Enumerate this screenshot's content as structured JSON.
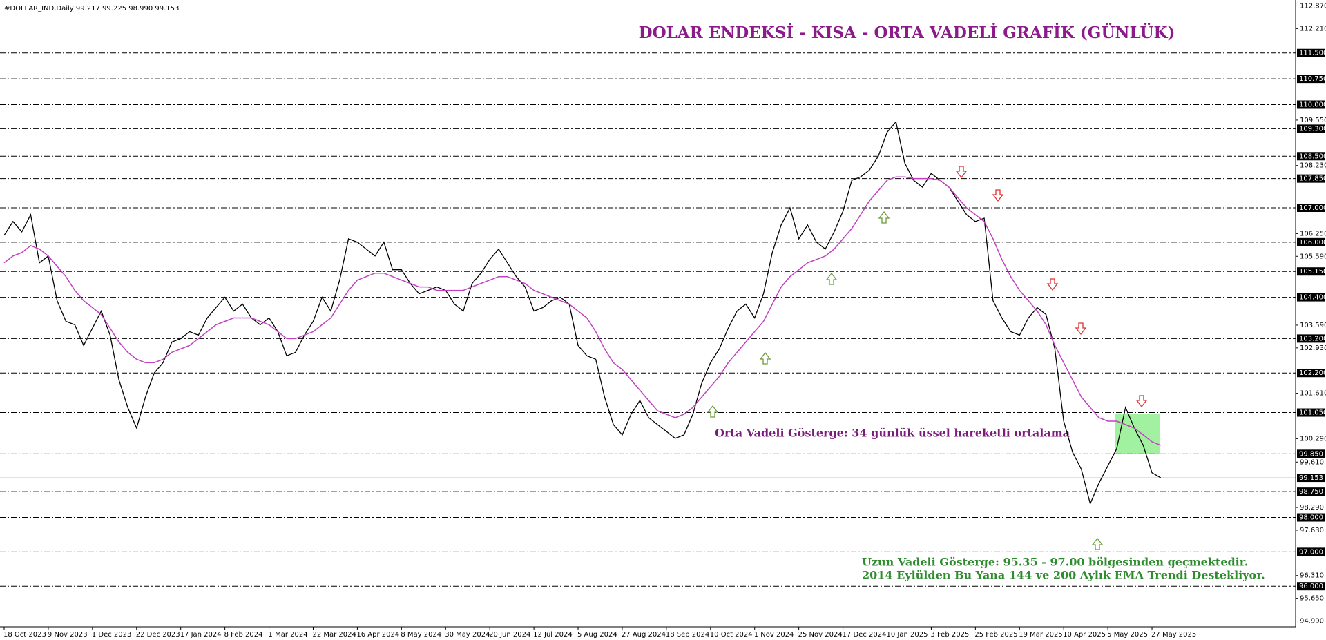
{
  "chart_data": {
    "type": "line",
    "header": "#DOLLAR_IND,Daily  99.217 99.225 98.990 99.153",
    "title": "DOLAR ENDEKSİ - KISA - ORTA VADELİ GRAFİK (GÜNLÜK)",
    "annotations": [
      "Orta Vadeli Gösterge: 34 günlük üssel hareketli ortalama",
      "Uzun Vadeli Gösterge: 95.35 - 97.00 bölgesinden geçmektedir.",
      "2014 Eylülden Bu Yana 144 ve 200 Aylık EMA Trendi Destekliyor."
    ],
    "categories": [
      "18 Oct 2023",
      null,
      null,
      null,
      null,
      "9 Nov 2023",
      null,
      null,
      null,
      null,
      "1 Dec 2023",
      null,
      null,
      null,
      null,
      "22 Dec 2023",
      null,
      null,
      null,
      null,
      "17 Jan 2024",
      null,
      null,
      null,
      null,
      "8 Feb 2024",
      null,
      null,
      null,
      null,
      "1 Mar 2024",
      null,
      null,
      null,
      null,
      "22 Mar 2024",
      null,
      null,
      null,
      null,
      "16 Apr 2024",
      null,
      null,
      null,
      null,
      "8 May 2024",
      null,
      null,
      null,
      null,
      "30 May 2024",
      null,
      null,
      null,
      null,
      "20 Jun 2024",
      null,
      null,
      null,
      null,
      "12 Jul 2024",
      null,
      null,
      null,
      null,
      "5 Aug 2024",
      null,
      null,
      null,
      null,
      "27 Aug 2024",
      null,
      null,
      null,
      null,
      "18 Sep 2024",
      null,
      null,
      null,
      null,
      "10 Oct 2024",
      null,
      null,
      null,
      null,
      "1 Nov 2024",
      null,
      null,
      null,
      null,
      "25 Nov 2024",
      null,
      null,
      null,
      null,
      "17 Dec 2024",
      null,
      null,
      null,
      null,
      "10 Jan 2025",
      null,
      null,
      null,
      null,
      "3 Feb 2025",
      null,
      null,
      null,
      null,
      "25 Feb 2025",
      null,
      null,
      null,
      null,
      "19 Mar 2025",
      null,
      null,
      null,
      null,
      "10 Apr 2025",
      null,
      null,
      null,
      null,
      "5 May 2025",
      null,
      null,
      null,
      null,
      "27 May 2025",
      null
    ],
    "series": [
      {
        "color": "#000000",
        "values": [
          106.2,
          106.6,
          106.3,
          106.8,
          105.4,
          105.6,
          104.3,
          103.7,
          103.6,
          103.0,
          103.5,
          104.0,
          103.3,
          102.0,
          101.2,
          100.6,
          101.5,
          102.2,
          102.5,
          103.1,
          103.2,
          103.4,
          103.3,
          103.8,
          104.1,
          104.4,
          104.0,
          104.2,
          103.8,
          103.6,
          103.8,
          103.4,
          102.7,
          102.8,
          103.3,
          103.7,
          104.4,
          104.0,
          104.9,
          106.1,
          106.0,
          105.8,
          105.6,
          106.0,
          105.2,
          105.2,
          104.8,
          104.5,
          104.6,
          104.7,
          104.6,
          104.2,
          104.0,
          104.8,
          105.1,
          105.5,
          105.8,
          105.4,
          105.0,
          104.7,
          104.0,
          104.1,
          104.3,
          104.4,
          104.2,
          103.0,
          102.7,
          102.6,
          101.5,
          100.7,
          100.4,
          101.0,
          101.4,
          100.9,
          100.7,
          100.5,
          100.3,
          100.4,
          101.0,
          101.9,
          102.5,
          102.9,
          103.5,
          104.0,
          104.2,
          103.8,
          104.5,
          105.7,
          106.5,
          107.0,
          106.1,
          106.5,
          106.0,
          105.8,
          106.3,
          106.9,
          107.8,
          107.9,
          108.1,
          108.5,
          109.2,
          109.5,
          108.3,
          107.8,
          107.6,
          108.0,
          107.8,
          107.6,
          107.2,
          106.8,
          106.6,
          106.7,
          104.3,
          103.8,
          103.4,
          103.3,
          103.8,
          104.1,
          103.9,
          102.9,
          100.8,
          99.9,
          99.4,
          98.4,
          99.0,
          99.5,
          100.0,
          101.2,
          100.6,
          100.1,
          99.3,
          99.153
        ]
      },
      {
        "color": "#c040c0",
        "values": [
          105.4,
          105.6,
          105.7,
          105.9,
          105.8,
          105.6,
          105.3,
          105.0,
          104.6,
          104.3,
          104.1,
          103.9,
          103.5,
          103.1,
          102.8,
          102.6,
          102.5,
          102.5,
          102.6,
          102.8,
          102.9,
          103.0,
          103.2,
          103.4,
          103.6,
          103.7,
          103.8,
          103.8,
          103.8,
          103.7,
          103.6,
          103.4,
          103.2,
          103.2,
          103.3,
          103.4,
          103.6,
          103.8,
          104.2,
          104.6,
          104.9,
          105.0,
          105.1,
          105.1,
          105.0,
          104.9,
          104.8,
          104.7,
          104.7,
          104.6,
          104.6,
          104.6,
          104.6,
          104.7,
          104.8,
          104.9,
          105.0,
          105.0,
          104.9,
          104.8,
          104.6,
          104.5,
          104.4,
          104.3,
          104.2,
          104.0,
          103.8,
          103.4,
          102.9,
          102.5,
          102.3,
          102.0,
          101.7,
          101.4,
          101.1,
          101.0,
          100.9,
          101.0,
          101.2,
          101.5,
          101.8,
          102.1,
          102.5,
          102.8,
          103.1,
          103.4,
          103.7,
          104.2,
          104.7,
          105.0,
          105.2,
          105.4,
          105.5,
          105.6,
          105.8,
          106.1,
          106.4,
          106.8,
          107.2,
          107.5,
          107.8,
          107.9,
          107.9,
          107.85,
          107.85,
          107.85,
          107.8,
          107.6,
          107.3,
          107.0,
          106.8,
          106.6,
          106.1,
          105.5,
          105.0,
          104.6,
          104.3,
          104.0,
          103.6,
          103.0,
          102.5,
          102.0,
          101.5,
          101.2,
          100.9,
          100.8,
          100.8,
          100.7,
          100.6,
          100.4,
          100.2,
          100.1
        ]
      }
    ],
    "ylim": [
      94.82,
      113.04
    ],
    "yticks": [
      {
        "value": 112.87,
        "label": "112.870"
      },
      {
        "value": 112.21,
        "label": "112.210"
      },
      {
        "value": 109.55,
        "label": "109.550"
      },
      {
        "value": 108.23,
        "label": "108.230"
      },
      {
        "value": 106.25,
        "label": "106.250"
      },
      {
        "value": 105.59,
        "label": "105.590"
      },
      {
        "value": 103.59,
        "label": "103.590"
      },
      {
        "value": 102.93,
        "label": "102.930"
      },
      {
        "value": 101.61,
        "label": "101.610"
      },
      {
        "value": 100.29,
        "label": "100.290"
      },
      {
        "value": 99.61,
        "label": "99.610"
      },
      {
        "value": 98.29,
        "label": "98.290"
      },
      {
        "value": 97.63,
        "label": "97.630"
      },
      {
        "value": 96.31,
        "label": "96.310"
      },
      {
        "value": 95.65,
        "label": "95.650"
      },
      {
        "value": 94.99,
        "label": "94.990"
      }
    ],
    "levels": [
      {
        "value": 111.5,
        "label": "111.500"
      },
      {
        "value": 110.75,
        "label": "110.750"
      },
      {
        "value": 110,
        "label": "110.000"
      },
      {
        "value": 109.3,
        "label": "109.300"
      },
      {
        "value": 108.5,
        "label": "108.500"
      },
      {
        "value": 107.85,
        "label": "107.850"
      },
      {
        "value": 107,
        "label": "107.000"
      },
      {
        "value": 106,
        "label": "106.000"
      },
      {
        "value": 105.15,
        "label": "105.150"
      },
      {
        "value": 104.4,
        "label": "104.400"
      },
      {
        "value": 103.2,
        "label": "103.200"
      },
      {
        "value": 102.2,
        "label": "102.200"
      },
      {
        "value": 101.05,
        "label": "101.050"
      },
      {
        "value": 99.85,
        "label": "99.850"
      },
      {
        "value": 98.75,
        "label": "98.750"
      },
      {
        "value": 98,
        "label": "98.000"
      },
      {
        "value": 97,
        "label": "97.000"
      },
      {
        "value": 96,
        "label": "96.000"
      }
    ],
    "current": {
      "value": 99.153,
      "label": "99.153"
    },
    "grid": true
  }
}
